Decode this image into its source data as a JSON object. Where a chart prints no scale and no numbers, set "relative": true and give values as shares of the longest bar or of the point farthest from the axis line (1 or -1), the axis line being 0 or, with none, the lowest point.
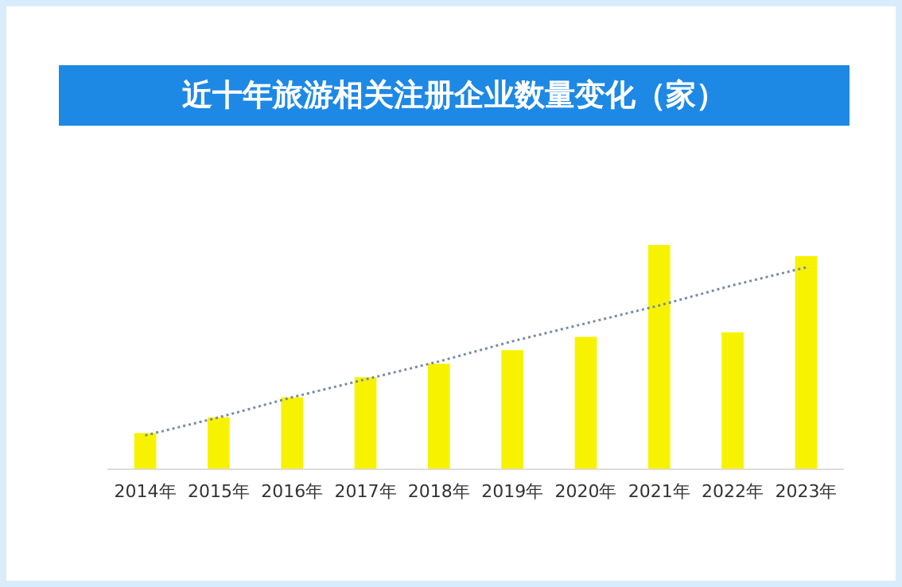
{
  "chart_data": {
    "type": "bar",
    "title": "近十年旅游相关注册企业数量变化（家）",
    "categories": [
      "2014年",
      "2015年",
      "2016年",
      "2017年",
      "2018年",
      "2019年",
      "2020年",
      "2021年",
      "2022年",
      "2023年"
    ],
    "relative": true,
    "grid": false,
    "legend": false,
    "series": [
      {
        "color": "#f7f300",
        "values": [
          0.16,
          0.23,
          0.32,
          0.41,
          0.47,
          0.53,
          0.59,
          1,
          0.61,
          0.95
        ]
      },
      {
        "type": "line",
        "color": "#7a8aa8",
        "line_style": "dotted",
        "marker": "none",
        "values": [
          0.15,
          0.23,
          0.32,
          0.4,
          0.48,
          0.57,
          0.65,
          0.73,
          0.82,
          0.9
        ]
      }
    ]
  }
}
